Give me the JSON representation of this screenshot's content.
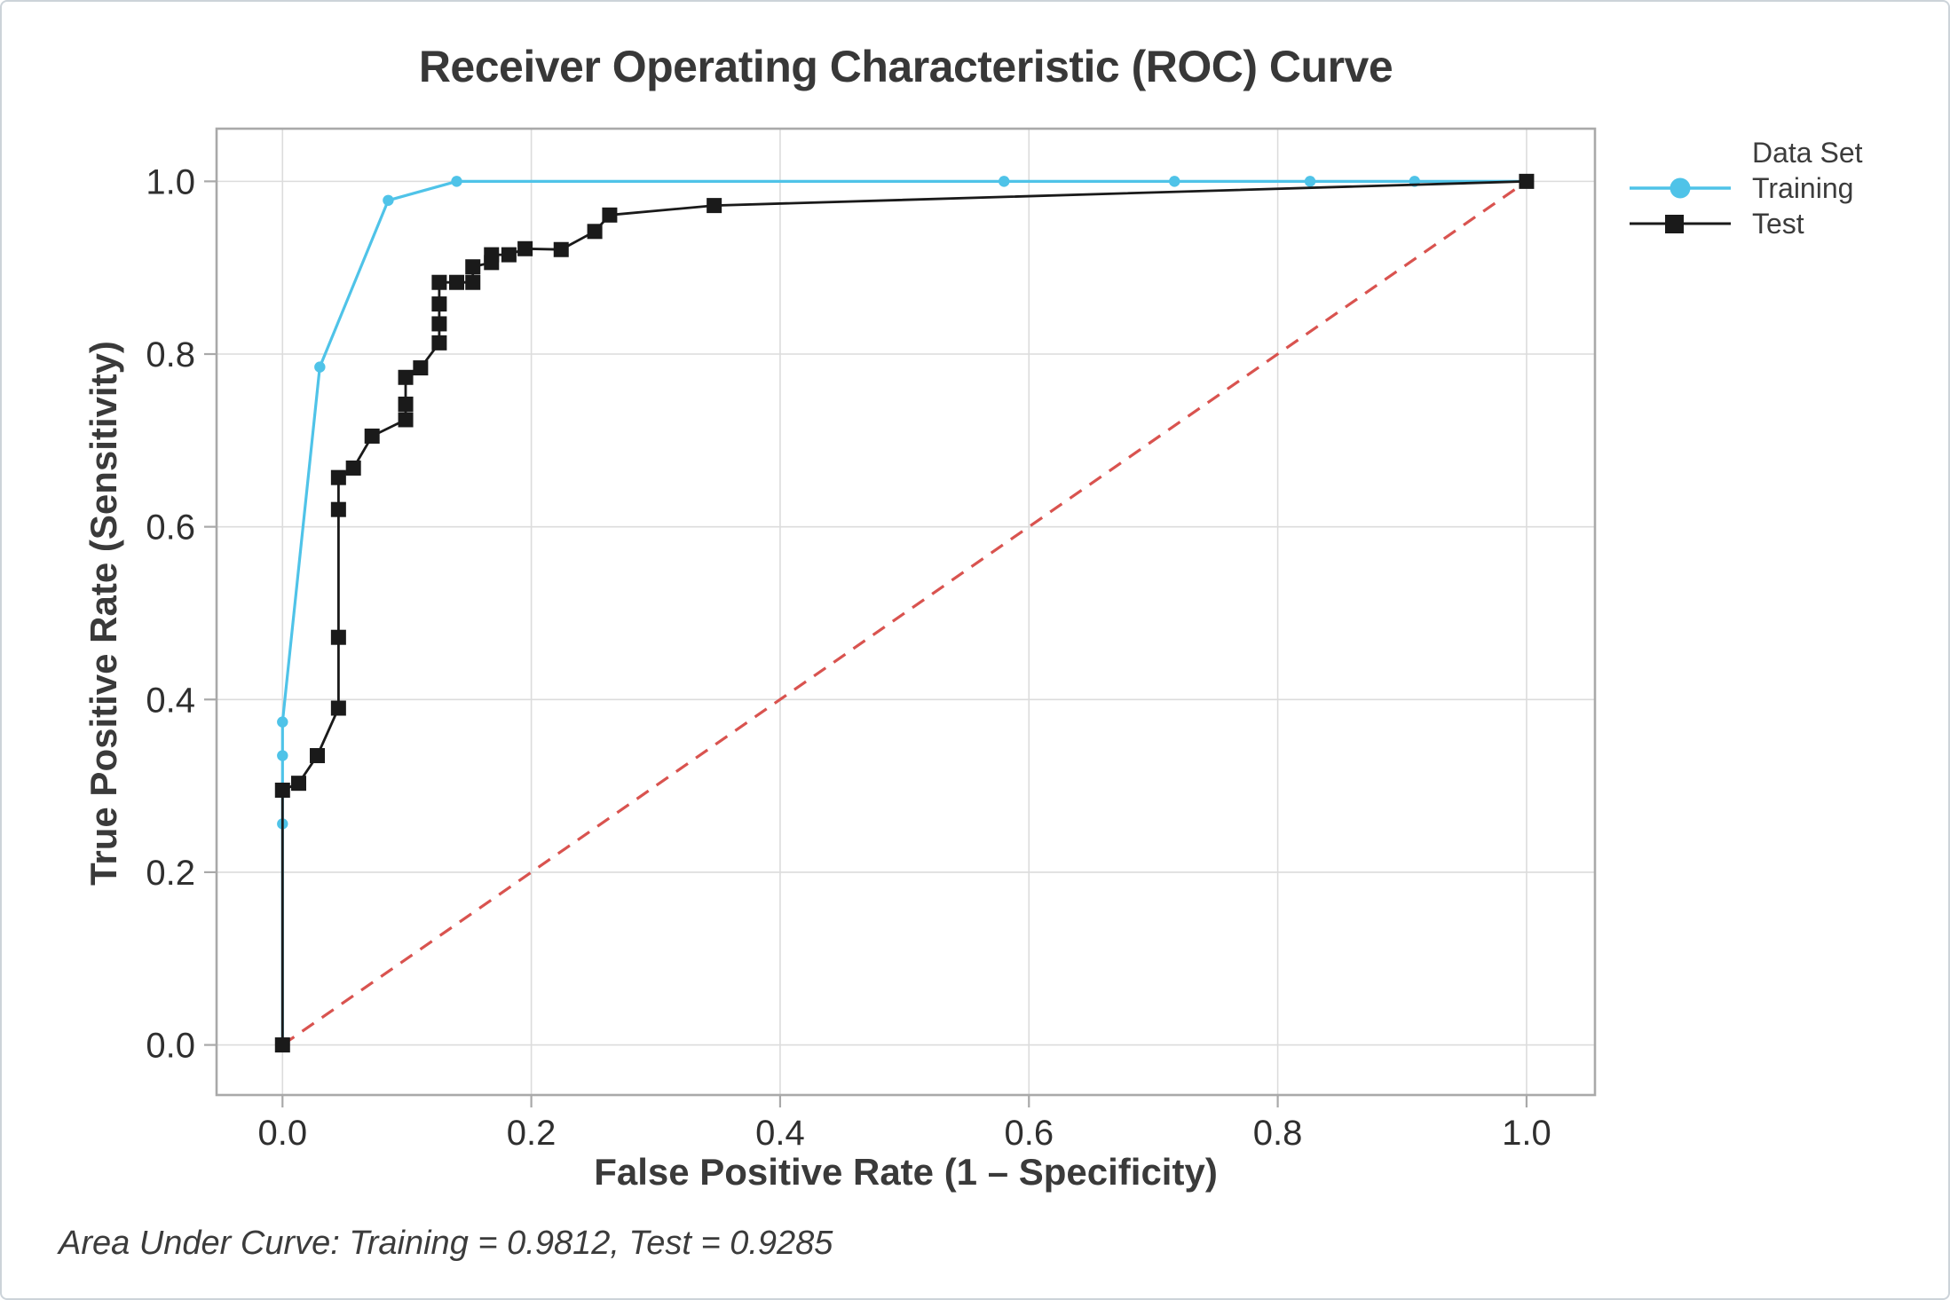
{
  "chart_data": {
    "type": "line",
    "title": "Receiver Operating Characteristic (ROC) Curve",
    "xlabel": "False Positive Rate (1 – Specificity)",
    "ylabel": "True Positive Rate (Sensitivity)",
    "legend_title": "Data Set",
    "legend_position": "top-right",
    "grid": true,
    "xlim": [
      -0.053,
      1.055
    ],
    "ylim": [
      -0.058,
      1.061
    ],
    "x_ticks": {
      "values": [
        0.0,
        0.2,
        0.4,
        0.6,
        0.8,
        1.0
      ],
      "labels": [
        "0.0",
        "0.2",
        "0.4",
        "0.6",
        "0.8",
        "1.0"
      ]
    },
    "y_ticks": {
      "values": [
        0.0,
        0.2,
        0.4,
        0.6,
        0.8,
        1.0
      ],
      "labels": [
        "0.0",
        "0.2",
        "0.4",
        "0.6",
        "0.8",
        "1.0"
      ]
    },
    "series": [
      {
        "name": "Training",
        "color": "#4fc3e8",
        "marker": "circle",
        "line_width": 3.2,
        "points": [
          [
            0.0,
            0.0
          ],
          [
            0.0,
            0.256
          ],
          [
            0.0,
            0.335
          ],
          [
            0.0,
            0.374
          ],
          [
            0.03,
            0.785
          ],
          [
            0.085,
            0.978
          ],
          [
            0.14,
            1.0
          ],
          [
            0.58,
            1.0
          ],
          [
            0.717,
            1.0
          ],
          [
            0.826,
            1.0
          ],
          [
            0.91,
            1.0
          ],
          [
            1.0,
            1.0
          ]
        ]
      },
      {
        "name": "Test",
        "color": "#1a1a1a",
        "marker": "square",
        "line_width": 2.8,
        "points": [
          [
            0.0,
            0.0
          ],
          [
            0.0,
            0.295
          ],
          [
            0.013,
            0.303
          ],
          [
            0.028,
            0.335
          ],
          [
            0.045,
            0.39
          ],
          [
            0.045,
            0.472
          ],
          [
            0.045,
            0.62
          ],
          [
            0.045,
            0.657
          ],
          [
            0.057,
            0.668
          ],
          [
            0.072,
            0.705
          ],
          [
            0.099,
            0.724
          ],
          [
            0.099,
            0.742
          ],
          [
            0.099,
            0.773
          ],
          [
            0.111,
            0.784
          ],
          [
            0.126,
            0.813
          ],
          [
            0.126,
            0.835
          ],
          [
            0.126,
            0.858
          ],
          [
            0.126,
            0.883
          ],
          [
            0.14,
            0.883
          ],
          [
            0.153,
            0.883
          ],
          [
            0.153,
            0.901
          ],
          [
            0.168,
            0.906
          ],
          [
            0.168,
            0.915
          ],
          [
            0.182,
            0.915
          ],
          [
            0.195,
            0.922
          ],
          [
            0.224,
            0.921
          ],
          [
            0.251,
            0.942
          ],
          [
            0.263,
            0.961
          ],
          [
            0.347,
            0.972
          ],
          [
            1.0,
            1.0
          ]
        ]
      }
    ],
    "reference_line": {
      "name": "chance diagonal",
      "points": [
        [
          0.0,
          0.0
        ],
        [
          1.0,
          1.0
        ]
      ],
      "color": "#d9534f",
      "style": "dashed"
    },
    "annotation": "Area Under Curve: Training = 0.9812, Test = 0.9285",
    "auc": {
      "Training": 0.9812,
      "Test": 0.9285
    }
  },
  "colors": {
    "title_text": "#383838",
    "label_text": "#3a3a3a",
    "tick_text": "#2f2f2f",
    "grid": "#dcdcdc",
    "frame": "#a9a9a9",
    "background": "#ffffff",
    "border": "#ccd3d9",
    "training": "#4fc3e8",
    "test": "#1a1a1a",
    "reference": "#d9534f"
  }
}
